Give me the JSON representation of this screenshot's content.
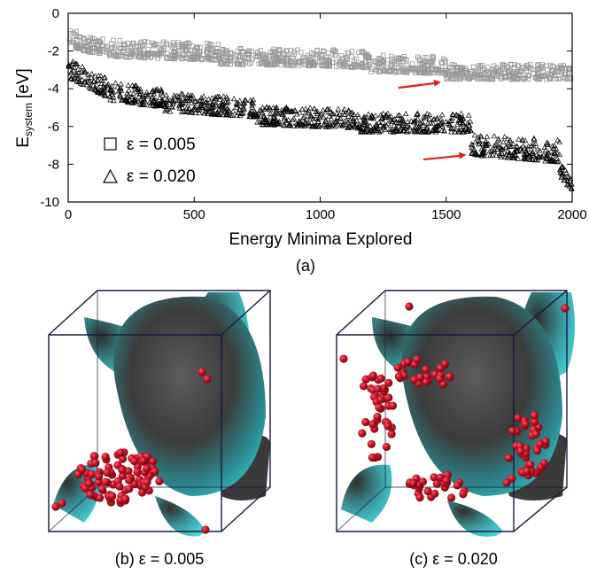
{
  "chart_data": {
    "type": "scatter",
    "xlabel": "Energy Minima Explored",
    "ylabel_main": "E",
    "ylabel_sub": "system",
    "ylabel_unit": "[eV]",
    "xlim": [
      0,
      2000
    ],
    "ylim": [
      -10,
      0
    ],
    "xticks": [
      "0",
      "500",
      "1000",
      "1500",
      "2000"
    ],
    "yticks": [
      "0",
      "-2",
      "-4",
      "-6",
      "-8",
      "-10"
    ],
    "series": [
      {
        "name": "ε = 0.005",
        "marker": "square",
        "color": "#999999",
        "band": [
          {
            "x": [
              0,
              50
            ],
            "base": [
              -1.6,
              -2.0
            ],
            "spread": 0.9
          },
          {
            "x": [
              50,
              160
            ],
            "base": [
              -2.0,
              -2.2
            ],
            "spread": 0.8
          },
          {
            "x": [
              160,
              600
            ],
            "base": [
              -2.3,
              -2.5
            ],
            "spread": 0.9
          },
          {
            "x": [
              600,
              1000
            ],
            "base": [
              -2.7,
              -2.8
            ],
            "spread": 0.9
          },
          {
            "x": [
              1000,
              1200
            ],
            "base": [
              -2.8,
              -2.9
            ],
            "spread": 0.9
          },
          {
            "x": [
              1200,
              1500
            ],
            "base": [
              -3.1,
              -3.2
            ],
            "spread": 0.9
          },
          {
            "x": [
              1500,
              2000
            ],
            "base": [
              -3.5,
              -3.5
            ],
            "spread": 0.8
          }
        ]
      },
      {
        "name": "ε = 0.020",
        "marker": "triangle",
        "color": "#000000",
        "band": [
          {
            "x": [
              0,
              150
            ],
            "base": [
              -3.4,
              -4.4
            ],
            "spread": 1.0
          },
          {
            "x": [
              150,
              380
            ],
            "base": [
              -4.6,
              -5.0
            ],
            "spread": 1.0
          },
          {
            "x": [
              380,
              750
            ],
            "base": [
              -5.2,
              -5.5
            ],
            "spread": 1.0
          },
          {
            "x": [
              750,
              1150
            ],
            "base": [
              -5.9,
              -6.1
            ],
            "spread": 1.0
          },
          {
            "x": [
              1150,
              1600
            ],
            "base": [
              -6.3,
              -6.3
            ],
            "spread": 1.0
          },
          {
            "x": [
              1600,
              1780
            ],
            "base": [
              -7.5,
              -7.7
            ],
            "spread": 1.1
          },
          {
            "x": [
              1780,
              1950
            ],
            "base": [
              -7.7,
              -7.9
            ],
            "spread": 1.2
          },
          {
            "x": [
              1950,
              2000
            ],
            "base": [
              -8.6,
              -9.4
            ],
            "spread": 0.8
          }
        ]
      }
    ],
    "annotations": [
      {
        "type": "arrow",
        "color": "#e02020",
        "from": [
          1310,
          -3.95
        ],
        "to": [
          1480,
          -3.65
        ]
      },
      {
        "type": "arrow",
        "color": "#e02020",
        "from": [
          1410,
          -7.75
        ],
        "to": [
          1580,
          -7.5
        ]
      }
    ]
  },
  "labels": {
    "panel_a": "(a)",
    "panel_b": "(b) ε = 0.005",
    "panel_c": "(c) ε = 0.020"
  },
  "colors": {
    "surface": "#3fd0d8",
    "surface_shade": "#3a3a3a",
    "particle": "#c41022",
    "box": "#1a1a40"
  }
}
